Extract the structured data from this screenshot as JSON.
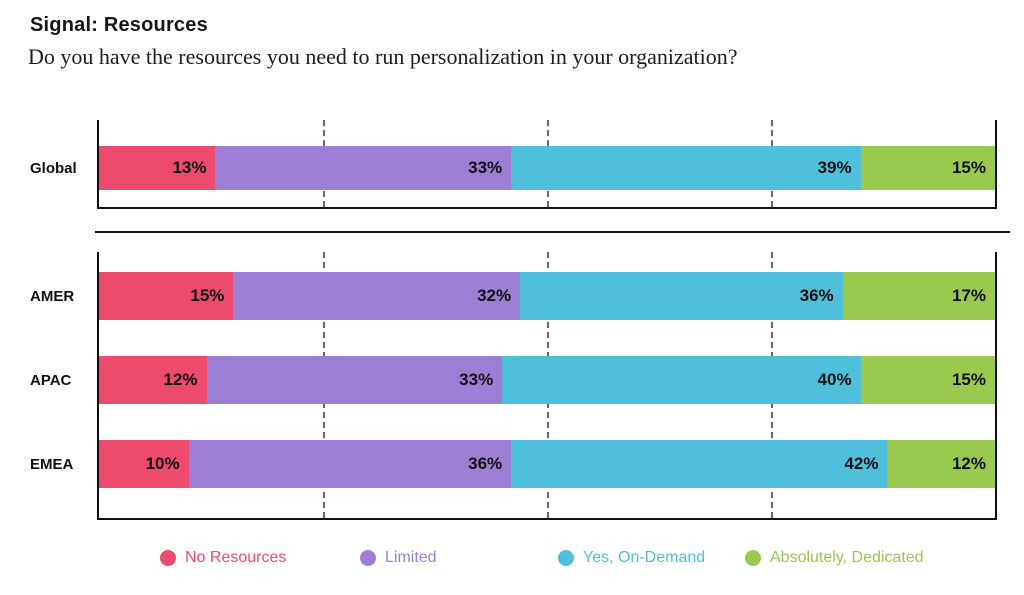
{
  "header": {
    "title": "Signal: Resources",
    "subtitle": "Do you have the resources you need to run personalization in your organization?"
  },
  "chart_data": {
    "type": "bar",
    "orientation": "horizontal",
    "stacked": true,
    "unit": "%",
    "title": "Signal: Resources",
    "question": "Do you have the resources you need to run personalization in your organization?",
    "series": [
      "No Resources",
      "Limited",
      "Yes, On-Demand",
      "Absolutely, Dedicated"
    ],
    "colors": [
      "#ED4B6E",
      "#9C7FD4",
      "#4FBFDB",
      "#9AC94F"
    ],
    "xlim": [
      0,
      100
    ],
    "gridlines_pct": [
      25,
      50,
      75
    ],
    "legend_position": "bottom",
    "rows": [
      {
        "label": "Global",
        "group": "global",
        "values": [
          13,
          33,
          39,
          15
        ]
      },
      {
        "label": "AMER",
        "group": "regions",
        "values": [
          15,
          32,
          36,
          17
        ]
      },
      {
        "label": "APAC",
        "group": "regions",
        "values": [
          12,
          33,
          40,
          15
        ]
      },
      {
        "label": "EMEA",
        "group": "regions",
        "values": [
          10,
          36,
          42,
          12
        ]
      }
    ]
  },
  "legend": {
    "items": [
      {
        "label": "No Resources",
        "color": "#ED4B6E"
      },
      {
        "label": "Limited",
        "color": "#9C7FD4"
      },
      {
        "label": "Yes, On-Demand",
        "color": "#4FBFDB"
      },
      {
        "label": "Absolutely, Dedicated",
        "color": "#9AC94F"
      }
    ]
  }
}
